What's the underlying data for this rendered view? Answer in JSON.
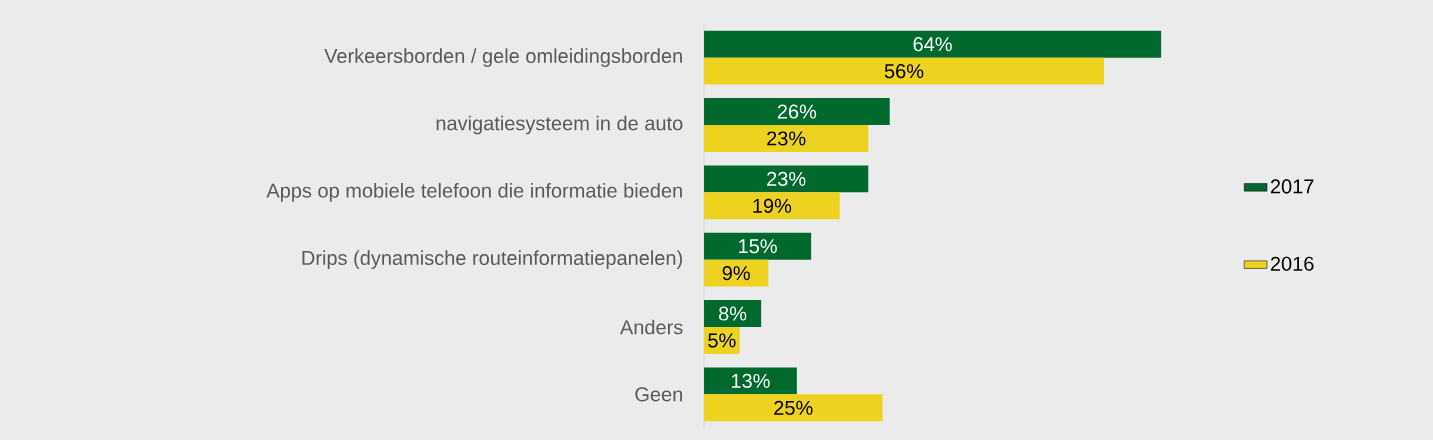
{
  "chart_data": {
    "type": "bar",
    "orientation": "horizontal",
    "categories": [
      "Verkeersborden / gele omleidingsborden",
      "navigatiesysteem in de auto",
      "Apps op mobiele telefoon die informatie bieden",
      "Drips (dynamische routeinformatiepanelen)",
      "Anders",
      "Geen"
    ],
    "series": [
      {
        "name": "2017",
        "color": "#006a2e",
        "values": [
          64,
          26,
          23,
          15,
          8,
          13
        ],
        "value_labels": [
          "64%",
          "26%",
          "23%",
          "15%",
          "8%",
          "13%"
        ]
      },
      {
        "name": "2016",
        "color": "#edd21f",
        "values": [
          56,
          23,
          19,
          9,
          5,
          25
        ],
        "value_labels": [
          "56%",
          "23%",
          "19%",
          "9%",
          "5%",
          "25%"
        ]
      }
    ],
    "legend": "right"
  }
}
